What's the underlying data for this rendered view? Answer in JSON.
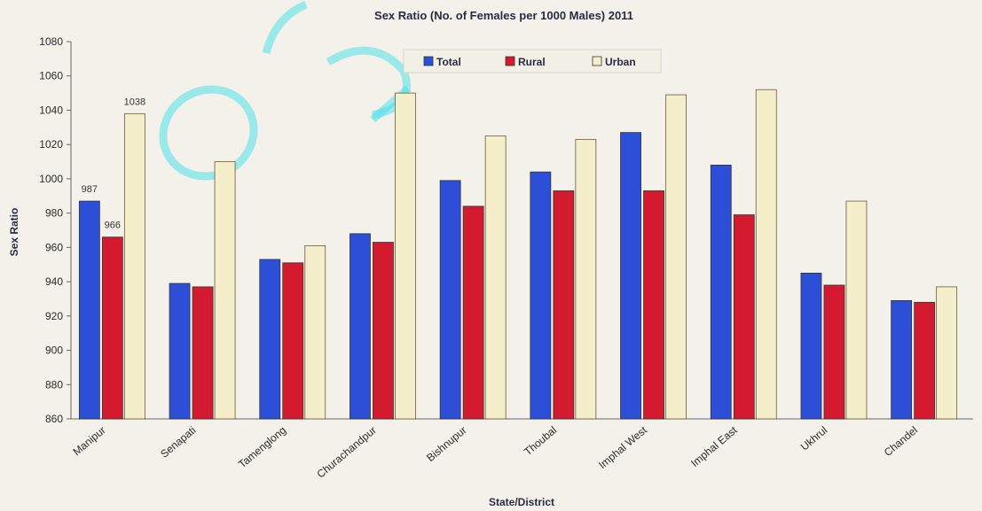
{
  "chart_data": {
    "type": "bar",
    "title": "Sex Ratio (No. of Females per 1000 Males) 2011",
    "xlabel": "State/District",
    "ylabel": "Sex Ratio",
    "ylim": [
      860,
      1080
    ],
    "yticks": [
      860,
      880,
      900,
      920,
      940,
      960,
      980,
      1000,
      1020,
      1040,
      1060,
      1080
    ],
    "ytick_labels": [
      "860",
      "880",
      "900",
      "920",
      "940",
      "960",
      "980",
      "1000",
      "1020",
      "1040",
      "1060",
      "1080"
    ],
    "categories": [
      "Manipur",
      "Senapati",
      "Tamenglong",
      "Churachandpur",
      "Bishnupur",
      "Thoubal",
      "Imphal West",
      "Imphal  East",
      "Ukhrul",
      "Chandel"
    ],
    "series": [
      {
        "name": "Total",
        "color": "#2d4fd8",
        "values": [
          987,
          939,
          953,
          968,
          999,
          1004,
          1027,
          1008,
          945,
          929
        ]
      },
      {
        "name": "Rural",
        "color": "#d41a2e",
        "values": [
          966,
          937,
          951,
          963,
          984,
          993,
          993,
          979,
          938,
          928
        ]
      },
      {
        "name": "Urban",
        "color": "#f5eecb",
        "values": [
          1038,
          1010,
          961,
          1050,
          1025,
          1023,
          1049,
          1052,
          987,
          937
        ]
      }
    ],
    "data_labels": [
      {
        "category": "Manipur",
        "series": "Total",
        "text": "987"
      },
      {
        "category": "Manipur",
        "series": "Rural",
        "text": "966"
      },
      {
        "category": "Manipur",
        "series": "Urban",
        "text": "1038"
      }
    ],
    "legend_position": "top",
    "grid": false
  }
}
